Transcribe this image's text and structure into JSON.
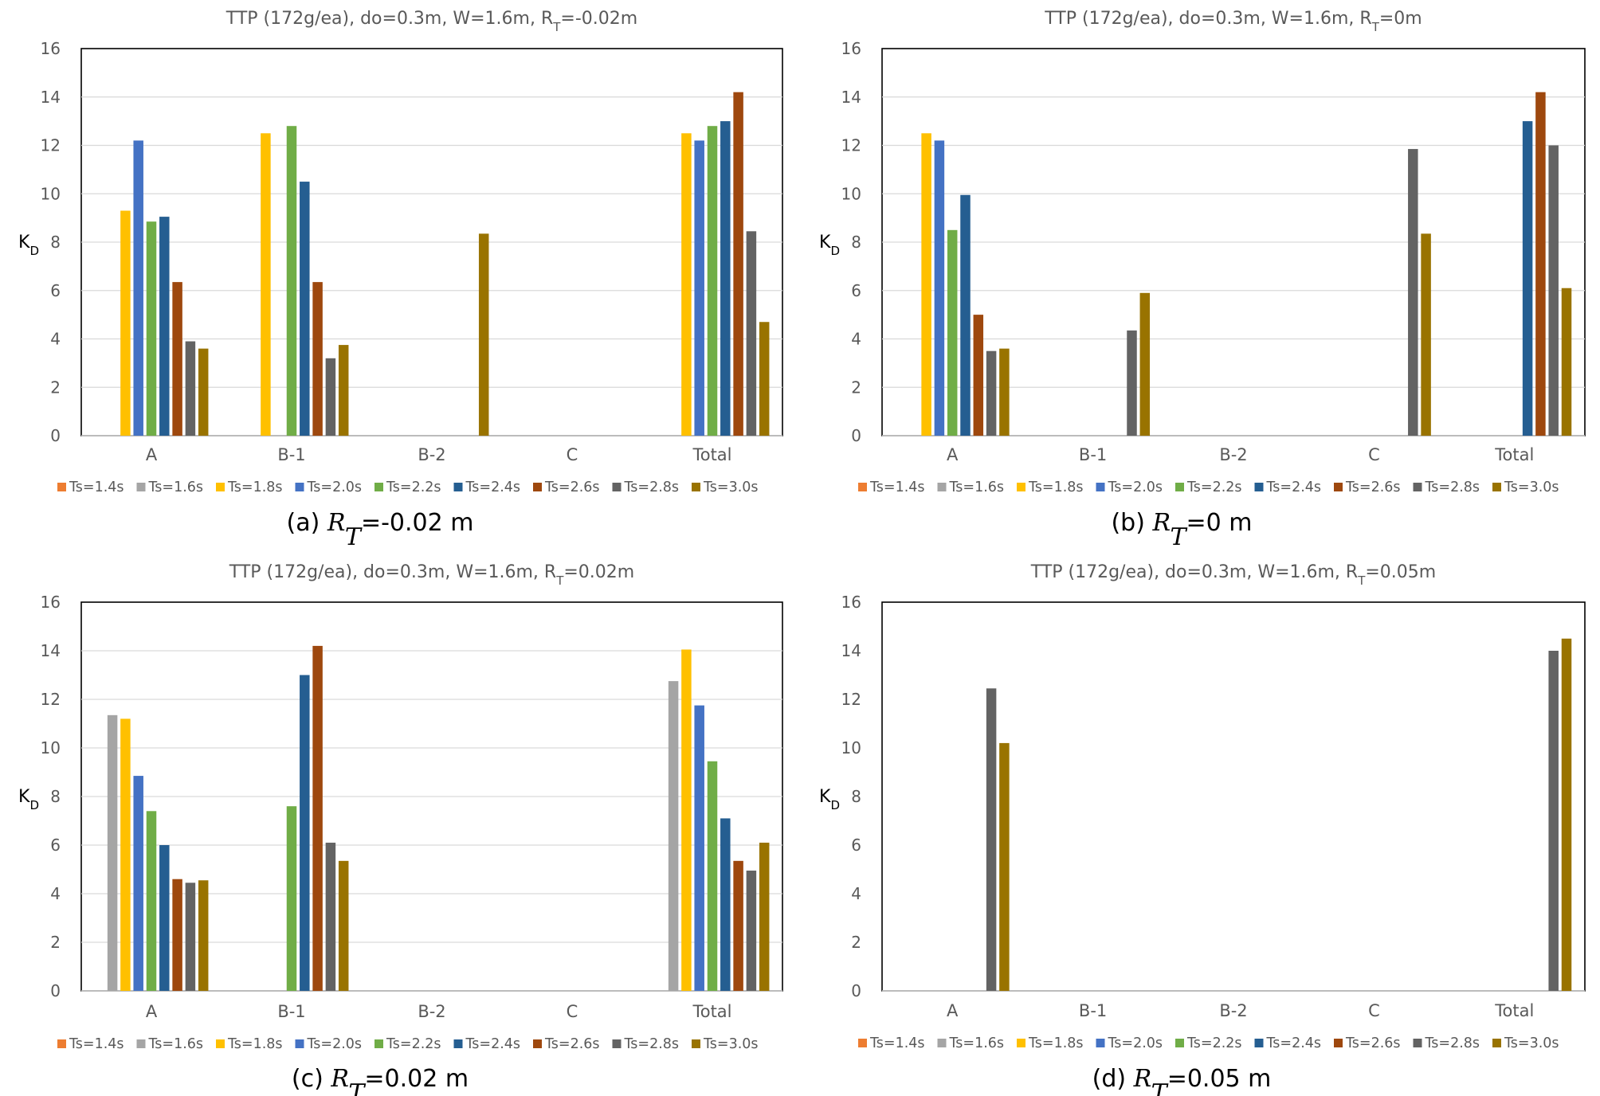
{
  "chart_data": [
    {
      "type": "bar",
      "title": "TTP (172g/ea), do=0.3m, W=1.6m, R",
      "title_sub": "T",
      "title_tail": "=-0.02m",
      "ylabel": "K",
      "ylabel_sub": "D",
      "ylim": [
        0,
        16
      ],
      "yticks": [
        "0",
        "2",
        "4",
        "6",
        "8",
        "10",
        "12",
        "14",
        "16"
      ],
      "grid": true,
      "legend": "bottom",
      "categories": [
        "A",
        "B-1",
        "B-2",
        "C",
        "Total"
      ],
      "series": [
        {
          "name": "Ts=1.4s",
          "values": [
            null,
            null,
            null,
            null,
            null
          ]
        },
        {
          "name": "Ts=1.6s",
          "values": [
            null,
            null,
            null,
            null,
            null
          ]
        },
        {
          "name": "Ts=1.8s",
          "values": [
            9.3,
            12.5,
            null,
            null,
            12.5
          ]
        },
        {
          "name": "Ts=2.0s",
          "values": [
            12.2,
            null,
            null,
            null,
            12.2
          ]
        },
        {
          "name": "Ts=2.2s",
          "values": [
            8.85,
            12.8,
            null,
            null,
            12.8
          ]
        },
        {
          "name": "Ts=2.4s",
          "values": [
            9.05,
            10.5,
            null,
            null,
            13.0
          ]
        },
        {
          "name": "Ts=2.6s",
          "values": [
            6.35,
            6.35,
            null,
            null,
            14.2
          ]
        },
        {
          "name": "Ts=2.8s",
          "values": [
            3.9,
            3.2,
            null,
            null,
            8.45
          ]
        },
        {
          "name": "Ts=3.0s",
          "values": [
            3.6,
            3.75,
            8.35,
            null,
            4.7
          ]
        }
      ],
      "caption_prefix": "(a) ",
      "caption_var": "R",
      "caption_sub": "T",
      "caption_tail": "=-0.02 m"
    },
    {
      "type": "bar",
      "title": "TTP (172g/ea), do=0.3m, W=1.6m, R",
      "title_sub": "T",
      "title_tail": "=0m",
      "ylabel": "K",
      "ylabel_sub": "D",
      "ylim": [
        0,
        16
      ],
      "yticks": [
        "0",
        "2",
        "4",
        "6",
        "8",
        "10",
        "12",
        "14",
        "16"
      ],
      "grid": true,
      "legend": "bottom",
      "categories": [
        "A",
        "B-1",
        "B-2",
        "C",
        "Total"
      ],
      "series": [
        {
          "name": "Ts=1.4s",
          "values": [
            null,
            null,
            null,
            null,
            null
          ]
        },
        {
          "name": "Ts=1.6s",
          "values": [
            null,
            null,
            null,
            null,
            null
          ]
        },
        {
          "name": "Ts=1.8s",
          "values": [
            12.5,
            null,
            null,
            null,
            null
          ]
        },
        {
          "name": "Ts=2.0s",
          "values": [
            12.2,
            null,
            null,
            null,
            null
          ]
        },
        {
          "name": "Ts=2.2s",
          "values": [
            8.5,
            null,
            null,
            null,
            null
          ]
        },
        {
          "name": "Ts=2.4s",
          "values": [
            9.95,
            null,
            null,
            null,
            13.0
          ]
        },
        {
          "name": "Ts=2.6s",
          "values": [
            5.0,
            null,
            null,
            null,
            14.2
          ]
        },
        {
          "name": "Ts=2.8s",
          "values": [
            3.5,
            4.35,
            null,
            11.85,
            12.0
          ]
        },
        {
          "name": "Ts=3.0s",
          "values": [
            3.6,
            5.9,
            null,
            8.35,
            6.1
          ]
        }
      ],
      "caption_prefix": "(b) ",
      "caption_var": "R",
      "caption_sub": "T",
      "caption_tail": "=0 m"
    },
    {
      "type": "bar",
      "title": "TTP (172g/ea), do=0.3m, W=1.6m, R",
      "title_sub": "T",
      "title_tail": "=0.02m",
      "ylabel": "K",
      "ylabel_sub": "D",
      "ylim": [
        0,
        16
      ],
      "yticks": [
        "0",
        "2",
        "4",
        "6",
        "8",
        "10",
        "12",
        "14",
        "16"
      ],
      "grid": true,
      "legend": "bottom",
      "categories": [
        "A",
        "B-1",
        "B-2",
        "C",
        "Total"
      ],
      "series": [
        {
          "name": "Ts=1.4s",
          "values": [
            null,
            null,
            null,
            null,
            null
          ]
        },
        {
          "name": "Ts=1.6s",
          "values": [
            11.35,
            null,
            null,
            null,
            12.75
          ]
        },
        {
          "name": "Ts=1.8s",
          "values": [
            11.2,
            null,
            null,
            null,
            14.05
          ]
        },
        {
          "name": "Ts=2.0s",
          "values": [
            8.85,
            null,
            null,
            null,
            11.75
          ]
        },
        {
          "name": "Ts=2.2s",
          "values": [
            7.4,
            7.6,
            null,
            null,
            9.45
          ]
        },
        {
          "name": "Ts=2.4s",
          "values": [
            6.0,
            13.0,
            null,
            null,
            7.1
          ]
        },
        {
          "name": "Ts=2.6s",
          "values": [
            4.6,
            14.2,
            null,
            null,
            5.35
          ]
        },
        {
          "name": "Ts=2.8s",
          "values": [
            4.45,
            6.1,
            null,
            null,
            4.95
          ]
        },
        {
          "name": "Ts=3.0s",
          "values": [
            4.55,
            5.35,
            null,
            null,
            6.1
          ]
        }
      ],
      "caption_prefix": "(c) ",
      "caption_var": "R",
      "caption_sub": "T",
      "caption_tail": "=0.02 m"
    },
    {
      "type": "bar",
      "title": "TTP (172g/ea), do=0.3m, W=1.6m, R",
      "title_sub": "T",
      "title_tail": "=0.05m",
      "ylabel": "K",
      "ylabel_sub": "D",
      "ylim": [
        0,
        16
      ],
      "yticks": [
        "0",
        "2",
        "4",
        "6",
        "8",
        "10",
        "12",
        "14",
        "16"
      ],
      "grid": false,
      "legend": "bottom",
      "categories": [
        "A",
        "B-1",
        "B-2",
        "C",
        "Total"
      ],
      "series": [
        {
          "name": "Ts=1.4s",
          "values": [
            null,
            null,
            null,
            null,
            null
          ]
        },
        {
          "name": "Ts=1.6s",
          "values": [
            null,
            null,
            null,
            null,
            null
          ]
        },
        {
          "name": "Ts=1.8s",
          "values": [
            null,
            null,
            null,
            null,
            null
          ]
        },
        {
          "name": "Ts=2.0s",
          "values": [
            null,
            null,
            null,
            null,
            null
          ]
        },
        {
          "name": "Ts=2.2s",
          "values": [
            null,
            null,
            null,
            null,
            null
          ]
        },
        {
          "name": "Ts=2.4s",
          "values": [
            null,
            null,
            null,
            null,
            null
          ]
        },
        {
          "name": "Ts=2.6s",
          "values": [
            null,
            null,
            null,
            null,
            null
          ]
        },
        {
          "name": "Ts=2.8s",
          "values": [
            12.45,
            null,
            null,
            null,
            14.0
          ]
        },
        {
          "name": "Ts=3.0s",
          "values": [
            10.2,
            null,
            null,
            null,
            14.5
          ]
        }
      ],
      "caption_prefix": "(d) ",
      "caption_var": "R",
      "caption_sub": "T",
      "caption_tail": "=0.05 m"
    }
  ],
  "series_colors": [
    "#ED7D31",
    "#A5A5A5",
    "#FFC000",
    "#4472C4",
    "#70AD47",
    "#255E91",
    "#9E480E",
    "#636363",
    "#997300"
  ]
}
